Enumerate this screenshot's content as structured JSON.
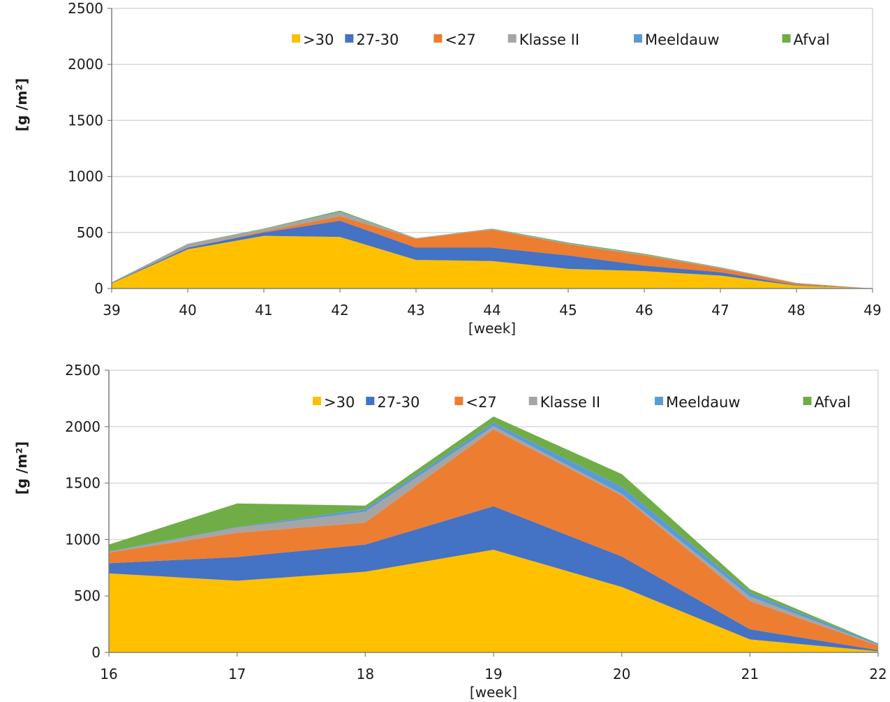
{
  "colors": {
    ">30": "#FFC000",
    "27-30": "#4472C4",
    "<27": "#ED7D31",
    "Klasse II": "#A5A5A5",
    "Meeldauw": "#5B9BD5",
    "Afval": "#70AD47",
    "grid": "#d9d9d9",
    "axis": "#7f7f7f"
  },
  "chart_data": [
    {
      "type": "area",
      "stacked": true,
      "xlabel": "[week]",
      "ylabel": "[g /m²]",
      "x": [
        39,
        40,
        41,
        42,
        43,
        44,
        45,
        46,
        47,
        48,
        49
      ],
      "x_ticks": [
        "39",
        "40",
        "41",
        "42",
        "43",
        "44",
        "45",
        "46",
        "47",
        "48",
        "49"
      ],
      "ylim": [
        0,
        2500
      ],
      "y_ticks": [
        "0",
        "500",
        "1000",
        "1500",
        "2000",
        "2500"
      ],
      "grid": true,
      "legend_position": "top",
      "series": [
        {
          "name": ">30",
          "values": [
            45,
            350,
            470,
            460,
            255,
            245,
            175,
            155,
            115,
            25,
            0
          ]
        },
        {
          "name": "27-30",
          "values": [
            5,
            15,
            30,
            145,
            110,
            120,
            120,
            50,
            30,
            5,
            0
          ]
        },
        {
          "name": "<27",
          "values": [
            0,
            0,
            10,
            40,
            80,
            160,
            100,
            90,
            35,
            15,
            0
          ]
        },
        {
          "name": "Klasse II",
          "values": [
            5,
            35,
            20,
            35,
            2,
            3,
            5,
            5,
            5,
            2,
            0
          ]
        },
        {
          "name": "Meeldauw",
          "values": [
            0,
            0,
            0,
            5,
            2,
            2,
            3,
            3,
            2,
            1,
            0
          ]
        },
        {
          "name": "Afval",
          "values": [
            0,
            0,
            5,
            10,
            1,
            5,
            7,
            7,
            3,
            2,
            0
          ]
        }
      ]
    },
    {
      "type": "area",
      "stacked": true,
      "xlabel": "[week]",
      "ylabel": "[g /m²]",
      "x": [
        16,
        17,
        18,
        19,
        20,
        21,
        22
      ],
      "x_ticks": [
        "16",
        "17",
        "18",
        "19",
        "20",
        "21",
        "22"
      ],
      "ylim": [
        0,
        2500
      ],
      "y_ticks": [
        "0",
        "500",
        "1000",
        "1500",
        "2000",
        "2500"
      ],
      "grid": true,
      "legend_position": "top",
      "series": [
        {
          "name": ">30",
          "values": [
            700,
            635,
            715,
            910,
            580,
            115,
            10
          ]
        },
        {
          "name": "27-30",
          "values": [
            90,
            210,
            240,
            385,
            270,
            90,
            10
          ]
        },
        {
          "name": "<27",
          "values": [
            95,
            215,
            195,
            680,
            540,
            250,
            40
          ]
        },
        {
          "name": "Klasse II",
          "values": [
            5,
            45,
            95,
            30,
            15,
            40,
            5
          ]
        },
        {
          "name": "Meeldauw",
          "values": [
            5,
            5,
            25,
            30,
            65,
            35,
            10
          ]
        },
        {
          "name": "Afval",
          "values": [
            60,
            210,
            30,
            55,
            110,
            30,
            5
          ]
        }
      ]
    }
  ]
}
